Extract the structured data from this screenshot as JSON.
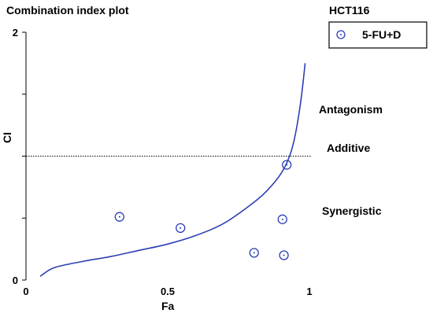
{
  "chart_data": {
    "type": "scatter",
    "title": "Combination index plot",
    "subtitle": "HCT116",
    "xlabel": "Fa",
    "ylabel": "CI",
    "xlim": [
      0,
      1
    ],
    "ylim": [
      0,
      2
    ],
    "x_ticks": [
      {
        "value": 0,
        "label": "0"
      },
      {
        "value": 0.5,
        "label": "0.5"
      },
      {
        "value": 1,
        "label": "1"
      }
    ],
    "y_ticks": [
      {
        "value": 0,
        "label": "0"
      },
      {
        "value": 0.5,
        "label": ""
      },
      {
        "value": 1,
        "label": ""
      },
      {
        "value": 1.5,
        "label": ""
      },
      {
        "value": 2,
        "label": "2"
      }
    ],
    "additive_line": {
      "y": 1,
      "style": "dotted"
    },
    "zone_labels": {
      "antagonism": "Antagonism",
      "additive": "Additive",
      "synergistic": "Synergistic"
    },
    "legend": {
      "position": "top-right",
      "label": "5-FU+D"
    },
    "series": [
      {
        "name": "5-FU+D",
        "marker": "circle-dot",
        "color": "#2b3fb5",
        "points": [
          {
            "x": 0.33,
            "y": 0.51
          },
          {
            "x": 0.545,
            "y": 0.42
          },
          {
            "x": 0.805,
            "y": 0.22
          },
          {
            "x": 0.905,
            "y": 0.49
          },
          {
            "x": 0.91,
            "y": 0.2
          },
          {
            "x": 0.92,
            "y": 0.93
          }
        ]
      }
    ],
    "fitted_curve": {
      "color": "#2b3fb5",
      "points": [
        {
          "x": 0.05,
          "y": 0.03
        },
        {
          "x": 0.1,
          "y": 0.1
        },
        {
          "x": 0.2,
          "y": 0.15
        },
        {
          "x": 0.3,
          "y": 0.19
        },
        {
          "x": 0.4,
          "y": 0.24
        },
        {
          "x": 0.5,
          "y": 0.29
        },
        {
          "x": 0.6,
          "y": 0.36
        },
        {
          "x": 0.7,
          "y": 0.46
        },
        {
          "x": 0.8,
          "y": 0.62
        },
        {
          "x": 0.85,
          "y": 0.72
        },
        {
          "x": 0.9,
          "y": 0.86
        },
        {
          "x": 0.93,
          "y": 1.0
        },
        {
          "x": 0.95,
          "y": 1.17
        },
        {
          "x": 0.97,
          "y": 1.45
        },
        {
          "x": 0.985,
          "y": 1.75
        }
      ]
    }
  }
}
